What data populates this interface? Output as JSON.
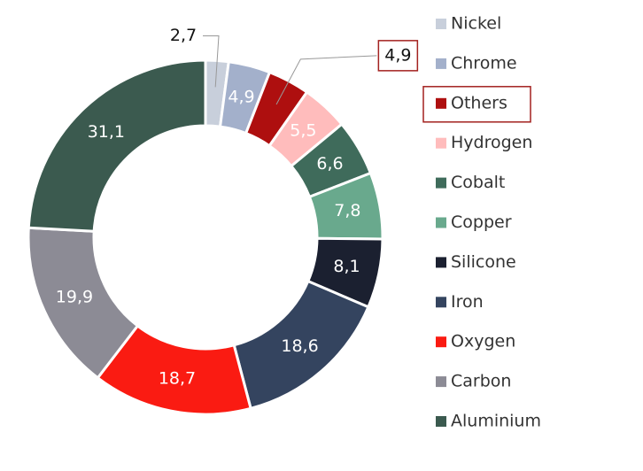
{
  "chart_data": {
    "type": "donut",
    "categories": [
      "Nickel",
      "Chrome",
      "Others",
      "Hydrogen",
      "Cobalt",
      "Copper",
      "Silicone",
      "Iron",
      "Oxygen",
      "Carbon",
      "Aluminium"
    ],
    "values": [
      2.7,
      4.9,
      4.9,
      5.5,
      6.6,
      7.8,
      8.1,
      18.6,
      18.7,
      19.9,
      31.1
    ],
    "value_labels": [
      "2,7",
      "4,9",
      "4,9",
      "5,5",
      "6,6",
      "7,8",
      "8,1",
      "18,6",
      "18,7",
      "19,9",
      "31,1"
    ],
    "colors": [
      "#c8cfdb",
      "#a3b0cb",
      "#ae0f0f",
      "#ffbcbc",
      "#3f6b5b",
      "#69a98d",
      "#1b2030",
      "#34445f",
      "#fa1b12",
      "#8c8b95",
      "#3b5a4f"
    ],
    "label_colors": [
      "#111111",
      "#ffffff",
      "#111111",
      "#ffffff",
      "#ffffff",
      "#ffffff",
      "#ffffff",
      "#ffffff",
      "#ffffff",
      "#ffffff",
      "#ffffff"
    ],
    "highlighted": "Others",
    "legend": "right"
  }
}
